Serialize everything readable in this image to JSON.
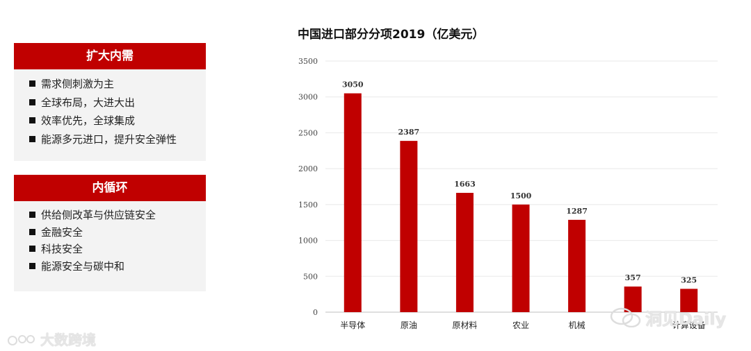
{
  "panels": [
    {
      "header": "扩大内需",
      "items": [
        "需求侧刺激为主",
        "全球布局，大进大出",
        "效率优先，全球集成",
        "能源多元进口，提升安全弹性"
      ]
    },
    {
      "header": "内循环",
      "items": [
        "供给侧改革与供应链安全",
        "金融安全",
        "科技安全",
        "能源安全与碳中和"
      ]
    }
  ],
  "watermarks": {
    "left": "大数跨境",
    "right": "洞见Daily"
  },
  "chart_data": {
    "type": "bar",
    "title": "中国进口部分分项2019（亿美元）",
    "categories": [
      "半导体",
      "原油",
      "原材料",
      "农业",
      "机械",
      "",
      "计算设备"
    ],
    "values": [
      3050,
      2387,
      1663,
      1500,
      1287,
      357,
      325
    ],
    "data_labels": [
      "3050",
      "2387",
      "1663",
      "1500",
      "1287",
      "357",
      "325"
    ],
    "yticks": [
      "0",
      "500",
      "1000",
      "1500",
      "2000",
      "2500",
      "3000",
      "3500"
    ],
    "ylim": [
      0,
      3500
    ],
    "xlabel": "",
    "ylabel": "",
    "grid": true,
    "bar_color": "#c00000"
  }
}
